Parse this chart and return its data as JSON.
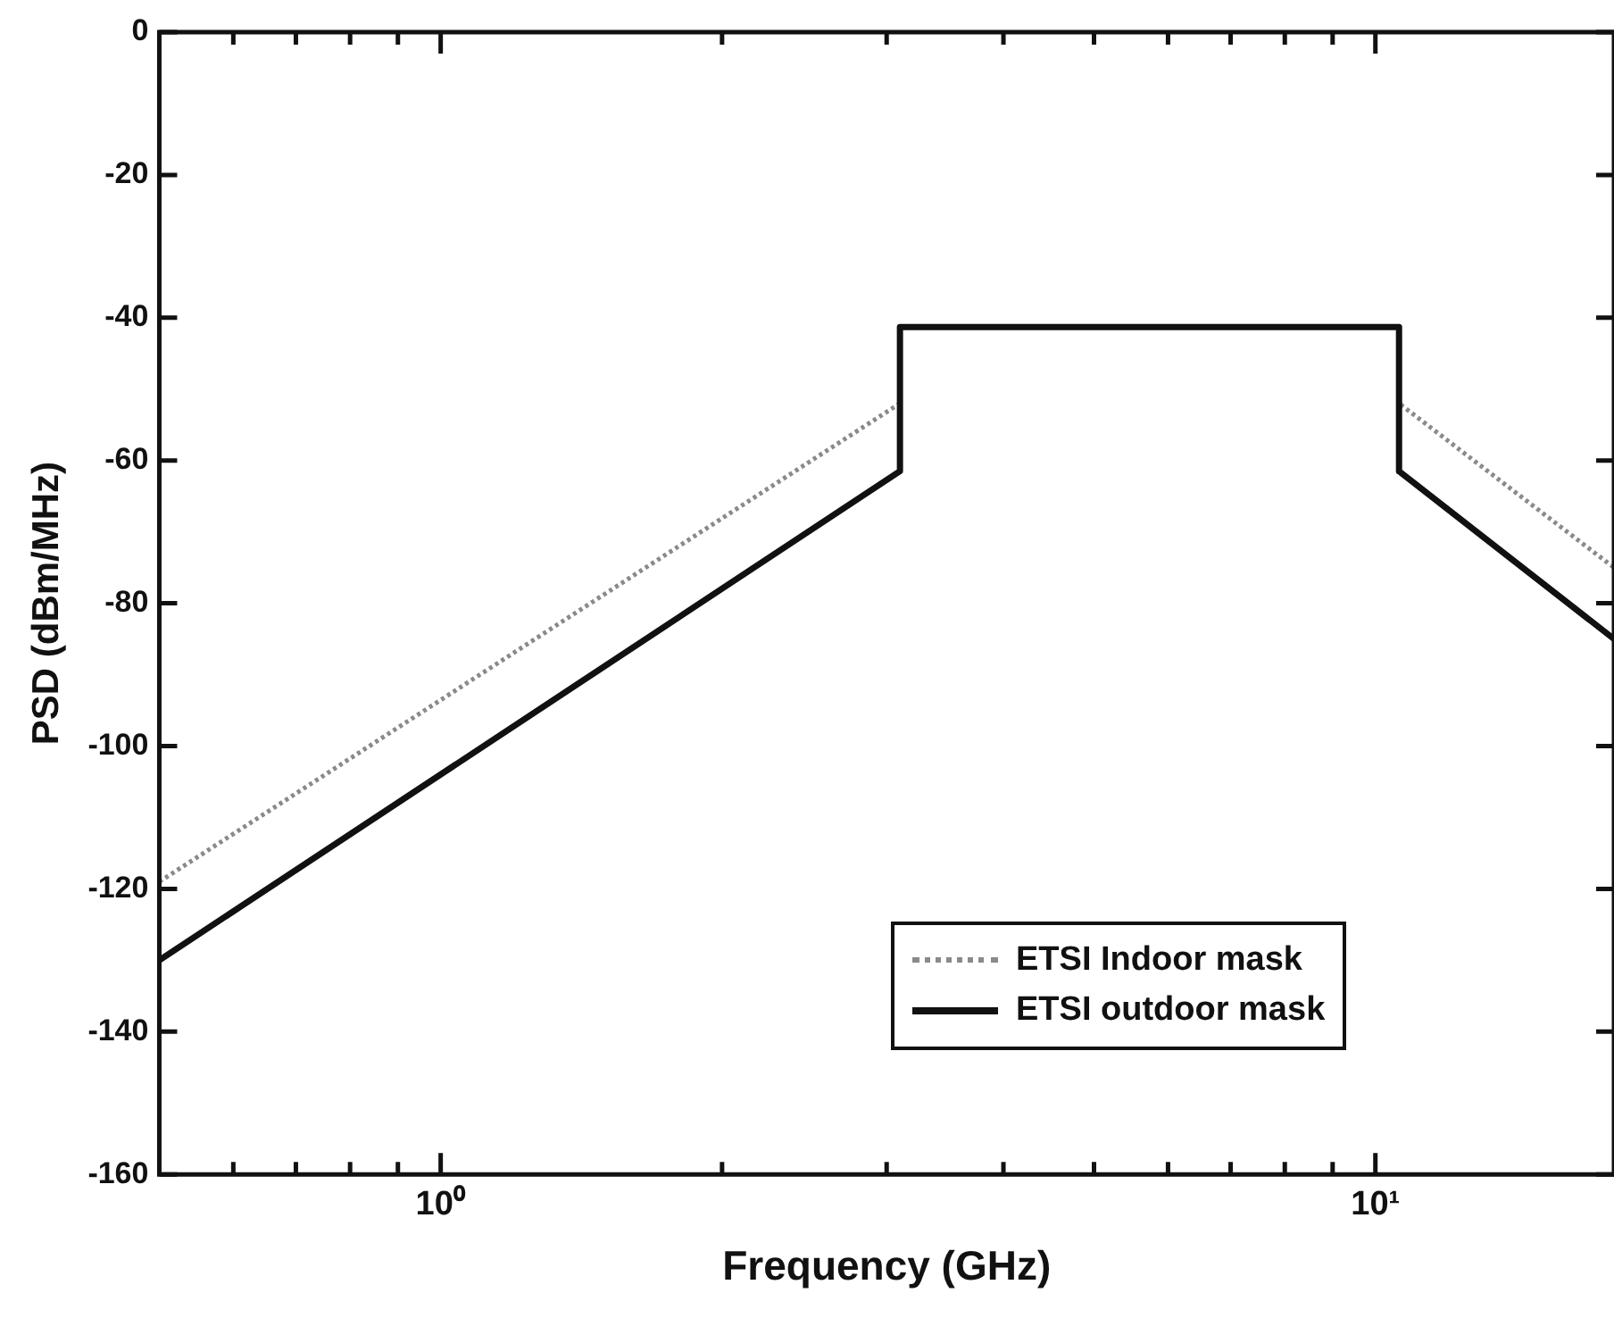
{
  "chart_data": {
    "type": "line",
    "xlabel": "Frequency (GHz)",
    "ylabel": "PSD (dBm/MHz)",
    "log": "x",
    "grid": false,
    "legend": "bottom right",
    "marker": "none",
    "xlim": [
      0.5,
      18
    ],
    "ylim": [
      -160,
      0
    ],
    "xticks": [
      {
        "value": 0.6,
        "label": null
      },
      {
        "value": 0.7,
        "label": null
      },
      {
        "value": 0.8,
        "label": null
      },
      {
        "value": 0.9,
        "label": null
      },
      {
        "value": 1,
        "label": "10⁰"
      },
      {
        "value": 2,
        "label": null
      },
      {
        "value": 3,
        "label": null
      },
      {
        "value": 4,
        "label": null
      },
      {
        "value": 5,
        "label": null
      },
      {
        "value": 6,
        "label": null
      },
      {
        "value": 7,
        "label": null
      },
      {
        "value": 8,
        "label": null
      },
      {
        "value": 9,
        "label": null
      },
      {
        "value": 10,
        "label": "10¹"
      }
    ],
    "yticks": [
      -160,
      -140,
      -120,
      -100,
      -80,
      -60,
      -40,
      -20,
      0
    ],
    "series": [
      {
        "name": "ETSI Indoor mask",
        "color": "#8a8a8a",
        "line_style": "dotted",
        "x": [
          0.5,
          3.1,
          3.1,
          10.6,
          10.6,
          18
        ],
        "values": [
          -119,
          -52,
          -41.3,
          -41.3,
          -52,
          -75
        ]
      },
      {
        "name": "ETSI outdoor mask",
        "color": "#111111",
        "line_style": "solid",
        "x": [
          0.5,
          3.1,
          3.1,
          10.6,
          10.6,
          18
        ],
        "values": [
          -130,
          -61.5,
          -41.3,
          -41.3,
          -61.5,
          -85
        ]
      }
    ]
  }
}
